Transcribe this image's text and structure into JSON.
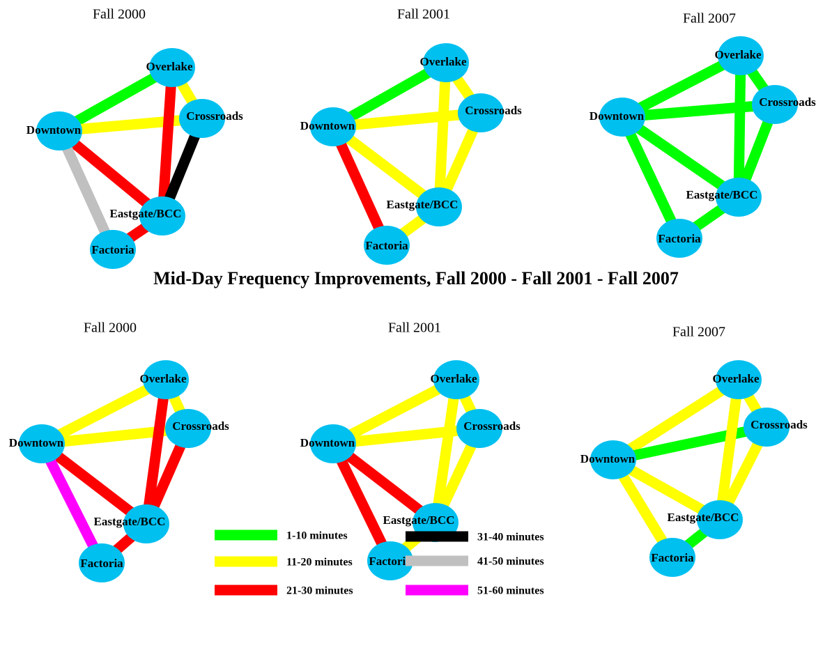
{
  "title": "Mid-Day Frequency Improvements, Fall 2000 - Fall 2001 - Fall 2007",
  "legend": [
    {
      "label": "1-10 minutes",
      "color": "#00ff00"
    },
    {
      "label": "11-20 minutes",
      "color": "#ffff00"
    },
    {
      "label": "21-30 minutes",
      "color": "#ff0000"
    },
    {
      "label": "31-40 minutes",
      "color": "#000000"
    },
    {
      "label": "41-50 minutes",
      "color": "#c0c0c0"
    },
    {
      "label": "51-60 minutes",
      "color": "#ff00ff"
    }
  ],
  "panels": [
    {
      "title": "Fall 2000",
      "nodes": [
        "Overlake",
        "Crossroads",
        "Downtown",
        "Eastgate/BCC",
        "Factoria"
      ],
      "edges": [
        {
          "from": 2,
          "to": 0,
          "band": 0
        },
        {
          "from": 2,
          "to": 1,
          "band": 1
        },
        {
          "from": 0,
          "to": 1,
          "band": 1
        },
        {
          "from": 0,
          "to": 3,
          "band": 2
        },
        {
          "from": 1,
          "to": 3,
          "band": 3
        },
        {
          "from": 2,
          "to": 3,
          "band": 2
        },
        {
          "from": 2,
          "to": 4,
          "band": 4
        },
        {
          "from": 3,
          "to": 4,
          "band": 2
        }
      ]
    },
    {
      "title": "Fall 2001",
      "nodes": [
        "Overlake",
        "Crossroads",
        "Downtown",
        "Eastgate/BCC",
        "Factoria"
      ],
      "edges": [
        {
          "from": 2,
          "to": 0,
          "band": 0
        },
        {
          "from": 2,
          "to": 1,
          "band": 1
        },
        {
          "from": 0,
          "to": 1,
          "band": 1
        },
        {
          "from": 0,
          "to": 3,
          "band": 1
        },
        {
          "from": 1,
          "to": 3,
          "band": 1
        },
        {
          "from": 2,
          "to": 3,
          "band": 1
        },
        {
          "from": 2,
          "to": 4,
          "band": 2
        },
        {
          "from": 3,
          "to": 4,
          "band": 1
        }
      ]
    },
    {
      "title": "Fall 2007",
      "nodes": [
        "Overlake",
        "Crossroads",
        "Downtown",
        "Eastgate/BCC",
        "Factoria"
      ],
      "edges": [
        {
          "from": 2,
          "to": 0,
          "band": 0
        },
        {
          "from": 2,
          "to": 1,
          "band": 0
        },
        {
          "from": 0,
          "to": 1,
          "band": 0
        },
        {
          "from": 0,
          "to": 3,
          "band": 0
        },
        {
          "from": 1,
          "to": 3,
          "band": 0
        },
        {
          "from": 2,
          "to": 3,
          "band": 0
        },
        {
          "from": 2,
          "to": 4,
          "band": 0
        },
        {
          "from": 3,
          "to": 4,
          "band": 0
        }
      ]
    },
    {
      "title": "Fall 2000",
      "nodes": [
        "Overlake",
        "Crossroads",
        "Downtown",
        "Eastgate/BCC",
        "Factoria"
      ],
      "edges": [
        {
          "from": 2,
          "to": 0,
          "band": 1
        },
        {
          "from": 2,
          "to": 1,
          "band": 1
        },
        {
          "from": 0,
          "to": 1,
          "band": 1
        },
        {
          "from": 0,
          "to": 3,
          "band": 2
        },
        {
          "from": 1,
          "to": 3,
          "band": 2
        },
        {
          "from": 2,
          "to": 3,
          "band": 2
        },
        {
          "from": 2,
          "to": 4,
          "band": 5
        },
        {
          "from": 3,
          "to": 4,
          "band": 2
        }
      ]
    },
    {
      "title": "Fall 2001",
      "nodes": [
        "Overlake",
        "Crossroads",
        "Downtown",
        "Eastgate/BCC",
        "Factoria"
      ],
      "edges": [
        {
          "from": 2,
          "to": 0,
          "band": 1
        },
        {
          "from": 2,
          "to": 1,
          "band": 1
        },
        {
          "from": 0,
          "to": 1,
          "band": 1
        },
        {
          "from": 0,
          "to": 3,
          "band": 1
        },
        {
          "from": 1,
          "to": 3,
          "band": 1
        },
        {
          "from": 2,
          "to": 3,
          "band": 2
        },
        {
          "from": 2,
          "to": 4,
          "band": 2
        },
        {
          "from": 3,
          "to": 4,
          "band": 1
        }
      ]
    },
    {
      "title": "Fall 2007",
      "nodes": [
        "Overlake",
        "Crossroads",
        "Downtown",
        "Eastgate/BCC",
        "Factoria"
      ],
      "edges": [
        {
          "from": 2,
          "to": 0,
          "band": 1
        },
        {
          "from": 2,
          "to": 1,
          "band": 0
        },
        {
          "from": 0,
          "to": 1,
          "band": 1
        },
        {
          "from": 0,
          "to": 3,
          "band": 1
        },
        {
          "from": 1,
          "to": 3,
          "band": 1
        },
        {
          "from": 2,
          "to": 3,
          "band": 1
        },
        {
          "from": 2,
          "to": 4,
          "band": 1
        },
        {
          "from": 3,
          "to": 4,
          "band": 0
        }
      ]
    }
  ]
}
